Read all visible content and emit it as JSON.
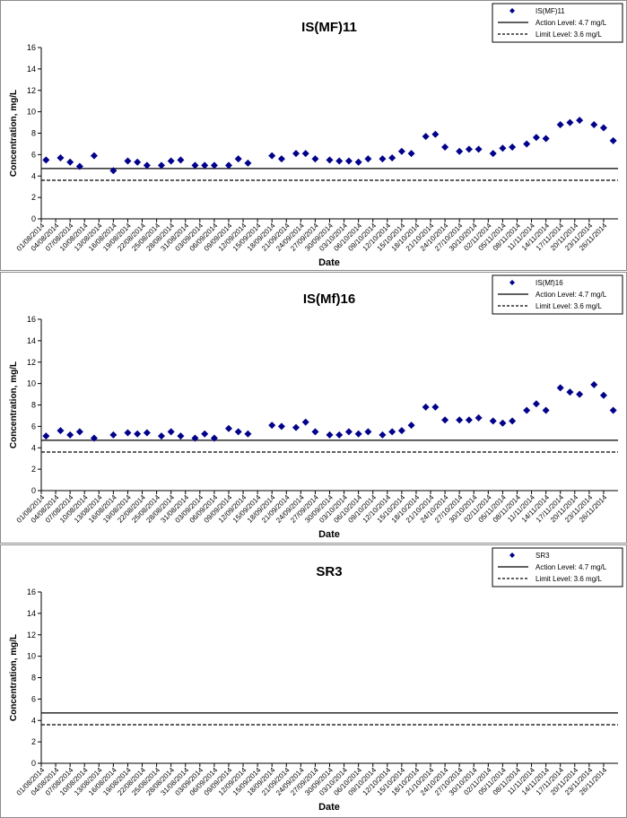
{
  "chart_data": [
    {
      "type": "scatter",
      "title": "IS(MF)11",
      "xlabel": "Date",
      "ylabel": "Concentration, mg/L",
      "x": [
        "02/08/2014",
        "05/08/2014",
        "07/08/2014",
        "09/08/2014",
        "12/08/2014",
        "16/08/2014",
        "19/08/2014",
        "21/08/2014",
        "23/08/2014",
        "26/08/2014",
        "28/08/2014",
        "30/08/2014",
        "02/09/2014",
        "04/09/2014",
        "06/09/2014",
        "09/09/2014",
        "11/09/2014",
        "13/09/2014",
        "18/09/2014",
        "20/09/2014",
        "23/09/2014",
        "25/09/2014",
        "27/09/2014",
        "30/09/2014",
        "02/10/2014",
        "04/10/2014",
        "06/10/2014",
        "08/10/2014",
        "11/10/2014",
        "13/10/2014",
        "15/10/2014",
        "17/10/2014",
        "20/10/2014",
        "22/10/2014",
        "24/10/2014",
        "27/10/2014",
        "29/10/2014",
        "31/10/2014",
        "03/11/2014",
        "05/11/2014",
        "07/11/2014",
        "10/11/2014",
        "12/11/2014",
        "14/11/2014",
        "17/11/2014",
        "19/11/2014",
        "21/11/2014",
        "24/11/2014",
        "26/11/2014",
        "28/11/2014"
      ],
      "series": [
        {
          "name": "IS(MF)11",
          "color": "#00008b",
          "marker": "diamond",
          "values": [
            5.5,
            5.7,
            5.3,
            4.9,
            5.9,
            4.5,
            5.4,
            5.3,
            5.0,
            5.0,
            5.4,
            5.5,
            5.0,
            5.0,
            5.0,
            5.0,
            5.6,
            5.2,
            5.9,
            5.6,
            6.1,
            6.1,
            5.6,
            5.5,
            5.4,
            5.4,
            5.3,
            5.6,
            5.6,
            5.7,
            6.3,
            6.1,
            7.7,
            7.9,
            6.7,
            6.3,
            6.5,
            6.5,
            6.1,
            6.6,
            6.7,
            7.0,
            7.6,
            7.5,
            8.8,
            9.0,
            9.2,
            8.8,
            8.5,
            7.3
          ]
        }
      ],
      "reference_lines": [
        {
          "name": "Action Level: 4.7 mg/L",
          "value": 4.7,
          "color": "#000000",
          "dashed": false
        },
        {
          "name": "Limit Level: 3.6 mg/L",
          "value": 3.6,
          "color": "#000000",
          "dashed": true
        }
      ],
      "xlim": [
        "01/08/2014",
        "29/11/2014"
      ],
      "xticks": [
        "01/08/2014",
        "04/08/2014",
        "07/08/2014",
        "10/08/2014",
        "13/08/2014",
        "16/08/2014",
        "19/08/2014",
        "22/08/2014",
        "25/08/2014",
        "28/08/2014",
        "31/08/2014",
        "03/09/2014",
        "06/09/2014",
        "09/09/2014",
        "12/09/2014",
        "15/09/2014",
        "18/09/2014",
        "21/09/2014",
        "24/09/2014",
        "27/09/2014",
        "30/09/2014",
        "03/10/2014",
        "06/10/2014",
        "09/10/2014",
        "12/10/2014",
        "15/10/2014",
        "18/10/2014",
        "21/10/2014",
        "24/10/2014",
        "27/10/2014",
        "30/10/2014",
        "02/11/2014",
        "05/11/2014",
        "08/11/2014",
        "11/11/2014",
        "14/11/2014",
        "17/11/2014",
        "20/11/2014",
        "23/11/2014",
        "26/11/2014"
      ],
      "ylim": [
        0,
        16
      ],
      "yticks": [
        0,
        2,
        4,
        6,
        8,
        10,
        12,
        14,
        16
      ],
      "legend": "top-right"
    },
    {
      "type": "scatter",
      "title": "IS(Mf)16",
      "xlabel": "Date",
      "ylabel": "Concentration, mg/L",
      "x": [
        "02/08/2014",
        "05/08/2014",
        "07/08/2014",
        "09/08/2014",
        "12/08/2014",
        "16/08/2014",
        "19/08/2014",
        "21/08/2014",
        "23/08/2014",
        "26/08/2014",
        "28/08/2014",
        "30/08/2014",
        "02/09/2014",
        "04/09/2014",
        "06/09/2014",
        "09/09/2014",
        "11/09/2014",
        "13/09/2014",
        "18/09/2014",
        "20/09/2014",
        "23/09/2014",
        "25/09/2014",
        "27/09/2014",
        "30/09/2014",
        "02/10/2014",
        "04/10/2014",
        "06/10/2014",
        "08/10/2014",
        "11/10/2014",
        "13/10/2014",
        "15/10/2014",
        "17/10/2014",
        "20/10/2014",
        "22/10/2014",
        "24/10/2014",
        "27/10/2014",
        "29/10/2014",
        "31/10/2014",
        "03/11/2014",
        "05/11/2014",
        "07/11/2014",
        "10/11/2014",
        "12/11/2014",
        "14/11/2014",
        "17/11/2014",
        "19/11/2014",
        "21/11/2014",
        "24/11/2014",
        "26/11/2014",
        "28/11/2014"
      ],
      "series": [
        {
          "name": "IS(Mf)16",
          "color": "#00008b",
          "marker": "diamond",
          "values": [
            5.1,
            5.6,
            5.2,
            5.5,
            4.9,
            5.2,
            5.4,
            5.3,
            5.4,
            5.1,
            5.5,
            5.1,
            4.9,
            5.3,
            4.9,
            5.8,
            5.5,
            5.3,
            6.1,
            6.0,
            5.9,
            6.4,
            5.5,
            5.2,
            5.2,
            5.5,
            5.3,
            5.5,
            5.2,
            5.5,
            5.6,
            6.1,
            7.8,
            7.8,
            6.6,
            6.6,
            6.6,
            6.8,
            6.5,
            6.3,
            6.5,
            7.5,
            8.1,
            7.5,
            9.6,
            9.2,
            9.0,
            9.9,
            8.9,
            7.5
          ]
        }
      ],
      "reference_lines": [
        {
          "name": "Action Level: 4.7 mg/L",
          "value": 4.7,
          "color": "#000000",
          "dashed": false
        },
        {
          "name": "Limit Level: 3.6 mg/L",
          "value": 3.6,
          "color": "#000000",
          "dashed": true
        }
      ],
      "xlim": [
        "01/08/2014",
        "29/11/2014"
      ],
      "xticks": [
        "01/08/2014",
        "04/08/2014",
        "07/08/2014",
        "10/08/2014",
        "13/08/2014",
        "16/08/2014",
        "19/08/2014",
        "22/08/2014",
        "25/08/2014",
        "28/08/2014",
        "31/08/2014",
        "03/09/2014",
        "06/09/2014",
        "09/09/2014",
        "12/09/2014",
        "15/09/2014",
        "18/09/2014",
        "21/09/2014",
        "24/09/2014",
        "27/09/2014",
        "30/09/2014",
        "03/10/2014",
        "06/10/2014",
        "09/10/2014",
        "12/10/2014",
        "15/10/2014",
        "18/10/2014",
        "21/10/2014",
        "24/10/2014",
        "27/10/2014",
        "30/10/2014",
        "02/11/2014",
        "05/11/2014",
        "08/11/2014",
        "11/11/2014",
        "14/11/2014",
        "17/11/2014",
        "20/11/2014",
        "23/11/2014",
        "26/11/2014"
      ],
      "ylim": [
        0,
        16
      ],
      "yticks": [
        0,
        2,
        4,
        6,
        8,
        10,
        12,
        14,
        16
      ],
      "legend": "top-right"
    },
    {
      "type": "scatter",
      "title": "SR3",
      "xlabel": "Date",
      "ylabel": "Concentration, mg/L",
      "x": [],
      "series": [
        {
          "name": "SR3",
          "color": "#00008b",
          "marker": "diamond",
          "values": []
        }
      ],
      "reference_lines": [
        {
          "name": "Action Level: 4.7 mg/L",
          "value": 4.7,
          "color": "#000000",
          "dashed": false
        },
        {
          "name": "Limit Level: 3.6 mg/L",
          "value": 3.6,
          "color": "#000000",
          "dashed": true
        }
      ],
      "xlim": [
        "01/08/2014",
        "29/11/2014"
      ],
      "xticks": [
        "01/08/2014",
        "04/08/2014",
        "07/08/2014",
        "10/08/2014",
        "13/08/2014",
        "16/08/2014",
        "19/08/2014",
        "22/08/2014",
        "25/08/2014",
        "28/08/2014",
        "31/08/2014",
        "03/09/2014",
        "06/09/2014",
        "09/09/2014",
        "12/09/2014",
        "15/09/2014",
        "18/09/2014",
        "21/09/2014",
        "24/09/2014",
        "27/09/2014",
        "30/09/2014",
        "03/10/2014",
        "06/10/2014",
        "09/10/2014",
        "12/10/2014",
        "15/10/2014",
        "18/10/2014",
        "21/10/2014",
        "24/10/2014",
        "27/10/2014",
        "30/10/2014",
        "02/11/2014",
        "05/11/2014",
        "08/11/2014",
        "11/11/2014",
        "14/11/2014",
        "17/11/2014",
        "20/11/2014",
        "23/11/2014",
        "26/11/2014"
      ],
      "ylim": [
        0,
        16
      ],
      "yticks": [
        0,
        2,
        4,
        6,
        8,
        10,
        12,
        14,
        16
      ],
      "legend": "top-right"
    }
  ]
}
